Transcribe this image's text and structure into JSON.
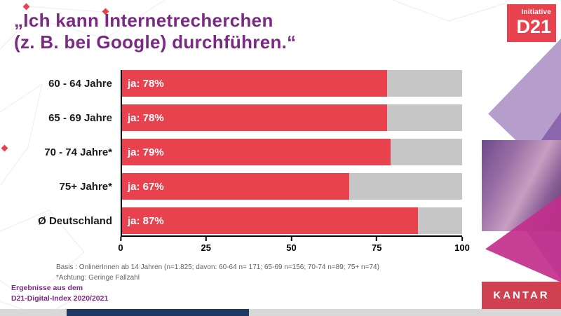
{
  "title": {
    "line1": "„Ich kann Internetrecherchen",
    "line2": "(z. B. bei Google) durchführen.“"
  },
  "logo": {
    "top": "Initiative",
    "main": "D21"
  },
  "chart_data": {
    "type": "bar",
    "orientation": "horizontal",
    "categories": [
      "60 - 64 Jahre",
      "65 - 69 Jahre",
      "70 - 74 Jahre*",
      "75+ Jahre*",
      "Ø Deutschland"
    ],
    "values": [
      78,
      78,
      79,
      67,
      87
    ],
    "bar_labels": [
      "ja: 78%",
      "ja: 78%",
      "ja: 79%",
      "ja: 67%",
      "ja: 87%"
    ],
    "xlim": [
      0,
      100
    ],
    "x_ticks": [
      0,
      25,
      50,
      75,
      100
    ],
    "bar_color": "#e8424e",
    "track_color": "#c6c6c6",
    "title": "„Ich kann Internetrecherchen (z. B. bei Google) durchführen.“",
    "xlabel": "",
    "ylabel": "",
    "grid": false,
    "legend": false
  },
  "footnote": {
    "line1": "Basis : OnlinerInnen ab 14 Jahren (n=1.825; davon: 60-64 n= 171; 65-69 n=156; 70-74 n=89; 75+ n=74)",
    "line2": "*Achtung: Geringe Fallzahl"
  },
  "source": {
    "line1": "Ergebnisse aus dem",
    "line2": "D21-Digital-Index 2020/2021"
  },
  "branding": {
    "kantar": "KANTAR"
  },
  "colors": {
    "purple": "#7b2a84",
    "red": "#e8424e",
    "track_gray": "#c6c6c6",
    "magenta": "#c2308c",
    "kantar_red": "#cf4150",
    "footnote_gray": "#636363",
    "navy": "#203864"
  }
}
